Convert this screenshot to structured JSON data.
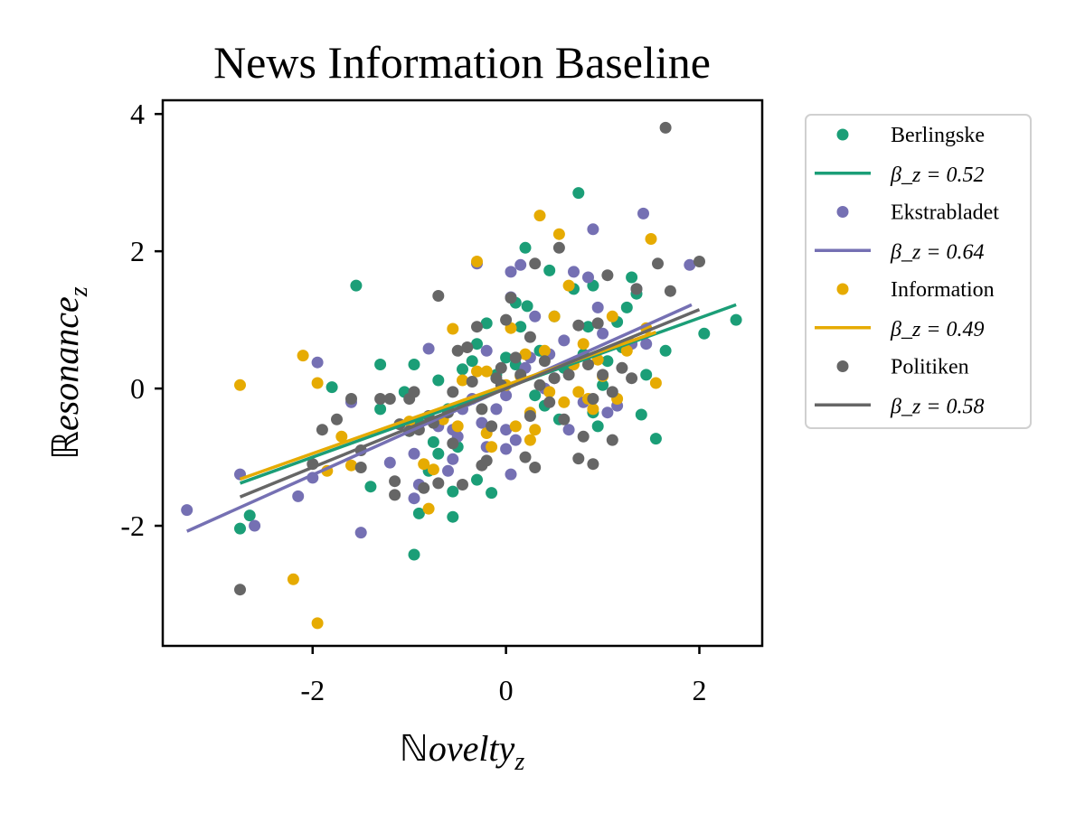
{
  "chart_data": {
    "type": "scatter",
    "title": "News Information Baseline",
    "xlabel_prefix": "ℕ",
    "xlabel_main": "ovelty",
    "xlabel_sub": "z",
    "ylabel_prefix": "ℝ",
    "ylabel_main": "esonance",
    "ylabel_sub": "z",
    "xlim": [
      -3.55,
      2.65
    ],
    "ylim": [
      -3.75,
      4.2
    ],
    "xticks": [
      -2,
      0,
      2
    ],
    "xtick_labels": [
      "-2",
      "0",
      "2"
    ],
    "yticks": [
      -2,
      0,
      2,
      4
    ],
    "ytick_labels": [
      "-2",
      "0",
      "2",
      "4"
    ],
    "grid": false,
    "legend_position": "outside-right",
    "series": [
      {
        "name": "Berlingske",
        "color": "#1b9e77",
        "fit_label": "β_z = 0.52",
        "fit": [
          [
            -2.75,
            -1.38
          ],
          [
            2.38,
            1.22
          ]
        ],
        "points": [
          [
            -2.65,
            -1.85
          ],
          [
            -2.75,
            -2.04
          ],
          [
            -1.55,
            1.5
          ],
          [
            -1.8,
            0.02
          ],
          [
            -1.3,
            -0.3
          ],
          [
            -1.4,
            -1.43
          ],
          [
            -0.95,
            -2.42
          ],
          [
            -0.9,
            -1.82
          ],
          [
            -0.55,
            -1.87
          ],
          [
            -0.55,
            -1.5
          ],
          [
            -0.3,
            -1.33
          ],
          [
            -0.15,
            -1.52
          ],
          [
            -0.5,
            -0.85
          ],
          [
            -0.75,
            -0.78
          ],
          [
            -0.7,
            -0.95
          ],
          [
            -0.8,
            -1.2
          ],
          [
            -1.0,
            -0.62
          ],
          [
            -0.9,
            -0.5
          ],
          [
            -0.7,
            0.12
          ],
          [
            -0.45,
            0.28
          ],
          [
            -0.35,
            0.4
          ],
          [
            -0.3,
            0.65
          ],
          [
            -0.2,
            0.95
          ],
          [
            0.0,
            0.45
          ],
          [
            0.1,
            0.35
          ],
          [
            0.1,
            1.25
          ],
          [
            0.15,
            0.9
          ],
          [
            0.2,
            2.05
          ],
          [
            0.22,
            1.2
          ],
          [
            0.35,
            0.55
          ],
          [
            0.45,
            1.72
          ],
          [
            0.5,
            1.05
          ],
          [
            0.6,
            0.3
          ],
          [
            0.7,
            1.45
          ],
          [
            0.75,
            2.85
          ],
          [
            0.8,
            0.5
          ],
          [
            0.85,
            0.9
          ],
          [
            0.9,
            1.5
          ],
          [
            0.9,
            -0.35
          ],
          [
            0.95,
            -0.55
          ],
          [
            1.0,
            0.05
          ],
          [
            1.05,
            0.4
          ],
          [
            1.15,
            0.97
          ],
          [
            1.2,
            0.6
          ],
          [
            1.25,
            1.18
          ],
          [
            1.3,
            1.62
          ],
          [
            1.35,
            1.38
          ],
          [
            1.4,
            -0.38
          ],
          [
            1.45,
            0.2
          ],
          [
            1.55,
            -0.73
          ],
          [
            1.65,
            0.55
          ],
          [
            2.05,
            0.8
          ],
          [
            2.38,
            1.0
          ],
          [
            -1.05,
            -0.05
          ],
          [
            -0.6,
            -0.3
          ],
          [
            -0.95,
            0.35
          ],
          [
            -1.3,
            0.35
          ],
          [
            -0.1,
            0.2
          ],
          [
            0.3,
            -0.1
          ],
          [
            0.55,
            -0.45
          ],
          [
            0.4,
            -0.25
          ]
        ]
      },
      {
        "name": "Ekstrabladet",
        "color": "#7570b3",
        "fit_label": "β_z = 0.64",
        "fit": [
          [
            -3.3,
            -2.08
          ],
          [
            1.92,
            1.22
          ]
        ],
        "points": [
          [
            -3.3,
            -1.77
          ],
          [
            -2.75,
            -1.25
          ],
          [
            -2.6,
            -2.0
          ],
          [
            -2.15,
            -1.57
          ],
          [
            -2.0,
            -1.3
          ],
          [
            -1.95,
            0.38
          ],
          [
            -1.6,
            -0.2
          ],
          [
            -1.5,
            -2.1
          ],
          [
            -1.2,
            -1.08
          ],
          [
            -0.95,
            -1.6
          ],
          [
            -0.9,
            -1.4
          ],
          [
            -0.95,
            -0.95
          ],
          [
            -0.8,
            0.58
          ],
          [
            -0.6,
            -1.2
          ],
          [
            -0.55,
            -1.03
          ],
          [
            -0.5,
            -0.7
          ],
          [
            -0.45,
            -0.3
          ],
          [
            -0.3,
            1.82
          ],
          [
            -0.25,
            -0.5
          ],
          [
            -0.2,
            0.55
          ],
          [
            -0.2,
            -0.85
          ],
          [
            -0.1,
            -0.3
          ],
          [
            0.0,
            -0.1
          ],
          [
            0.0,
            -0.6
          ],
          [
            0.0,
            -0.88
          ],
          [
            0.05,
            1.33
          ],
          [
            0.05,
            1.7
          ],
          [
            0.1,
            -0.75
          ],
          [
            0.05,
            -1.25
          ],
          [
            0.15,
            1.8
          ],
          [
            0.25,
            0.45
          ],
          [
            0.3,
            1.05
          ],
          [
            0.45,
            0.5
          ],
          [
            0.5,
            0.15
          ],
          [
            0.6,
            0.7
          ],
          [
            0.65,
            -0.6
          ],
          [
            0.7,
            1.7
          ],
          [
            0.8,
            -0.2
          ],
          [
            0.85,
            1.62
          ],
          [
            0.9,
            2.32
          ],
          [
            0.95,
            1.18
          ],
          [
            1.0,
            0.8
          ],
          [
            1.05,
            -0.35
          ],
          [
            1.15,
            -0.25
          ],
          [
            1.3,
            0.65
          ],
          [
            1.35,
            1.45
          ],
          [
            1.42,
            2.55
          ],
          [
            1.45,
            0.65
          ],
          [
            1.9,
            1.8
          ],
          [
            -0.55,
            -0.6
          ],
          [
            -0.7,
            -0.55
          ],
          [
            -0.35,
            -0.15
          ],
          [
            0.4,
            0.0
          ],
          [
            0.2,
            0.3
          ]
        ]
      },
      {
        "name": "Information",
        "color": "#e6ab02",
        "fit_label": "β_z = 0.49",
        "fit": [
          [
            -2.75,
            -1.32
          ],
          [
            1.55,
            0.82
          ]
        ],
        "points": [
          [
            -2.75,
            0.05
          ],
          [
            -2.1,
            0.48
          ],
          [
            -1.95,
            0.08
          ],
          [
            -1.85,
            -1.2
          ],
          [
            -1.7,
            -0.7
          ],
          [
            -1.6,
            -1.12
          ],
          [
            -2.2,
            -2.78
          ],
          [
            -1.95,
            -3.42
          ],
          [
            -1.0,
            -0.48
          ],
          [
            -0.85,
            -1.1
          ],
          [
            -0.75,
            -1.18
          ],
          [
            -0.8,
            -1.75
          ],
          [
            -0.55,
            0.87
          ],
          [
            -0.5,
            -0.55
          ],
          [
            -0.45,
            0.12
          ],
          [
            -0.3,
            0.25
          ],
          [
            -0.3,
            1.85
          ],
          [
            -0.2,
            -0.65
          ],
          [
            -0.15,
            -0.85
          ],
          [
            0.05,
            0.88
          ],
          [
            0.1,
            -0.55
          ],
          [
            0.15,
            0.18
          ],
          [
            0.2,
            0.5
          ],
          [
            0.25,
            -0.35
          ],
          [
            0.25,
            -0.75
          ],
          [
            0.3,
            -0.6
          ],
          [
            0.35,
            2.52
          ],
          [
            0.4,
            0.55
          ],
          [
            0.45,
            -0.05
          ],
          [
            0.5,
            1.05
          ],
          [
            0.55,
            2.25
          ],
          [
            0.6,
            -0.2
          ],
          [
            0.65,
            1.5
          ],
          [
            0.7,
            0.35
          ],
          [
            0.75,
            -0.05
          ],
          [
            0.8,
            0.65
          ],
          [
            0.85,
            -0.15
          ],
          [
            0.9,
            -0.3
          ],
          [
            0.95,
            0.42
          ],
          [
            1.0,
            0.18
          ],
          [
            1.1,
            1.05
          ],
          [
            1.15,
            -0.15
          ],
          [
            1.25,
            0.55
          ],
          [
            1.45,
            0.88
          ],
          [
            1.5,
            2.18
          ],
          [
            1.55,
            0.08
          ],
          [
            -0.2,
            0.25
          ],
          [
            0.0,
            0.05
          ],
          [
            -0.65,
            -0.45
          ]
        ]
      },
      {
        "name": "Politiken",
        "color": "#666666",
        "fit_label": "β_z = 0.58",
        "fit": [
          [
            -2.75,
            -1.58
          ],
          [
            2.0,
            1.15
          ]
        ],
        "points": [
          [
            -2.75,
            -2.93
          ],
          [
            -2.0,
            -1.1
          ],
          [
            -1.9,
            -0.6
          ],
          [
            -1.75,
            -0.45
          ],
          [
            -1.6,
            -0.15
          ],
          [
            -1.5,
            -0.9
          ],
          [
            -1.5,
            -1.15
          ],
          [
            -1.3,
            -0.15
          ],
          [
            -1.2,
            -0.15
          ],
          [
            -1.15,
            -1.35
          ],
          [
            -1.15,
            -1.55
          ],
          [
            -1.1,
            -0.52
          ],
          [
            -1.0,
            -0.62
          ],
          [
            -1.0,
            -0.15
          ],
          [
            -0.95,
            -0.05
          ],
          [
            -0.9,
            -0.6
          ],
          [
            -0.85,
            -1.45
          ],
          [
            -0.75,
            -0.5
          ],
          [
            -0.7,
            1.35
          ],
          [
            -0.7,
            -1.38
          ],
          [
            -0.6,
            -0.35
          ],
          [
            -0.55,
            -0.8
          ],
          [
            -0.5,
            0.55
          ],
          [
            -0.45,
            -1.4
          ],
          [
            -0.4,
            0.6
          ],
          [
            -0.35,
            0.1
          ],
          [
            -0.3,
            0.9
          ],
          [
            -0.25,
            -1.12
          ],
          [
            -0.2,
            -1.05
          ],
          [
            -0.15,
            -0.55
          ],
          [
            -0.1,
            0.15
          ],
          [
            -0.05,
            0.3
          ],
          [
            0.0,
            1.0
          ],
          [
            0.05,
            1.32
          ],
          [
            0.1,
            0.45
          ],
          [
            0.15,
            0.2
          ],
          [
            0.2,
            -1.0
          ],
          [
            0.25,
            0.75
          ],
          [
            0.3,
            1.82
          ],
          [
            0.3,
            -1.15
          ],
          [
            0.4,
            0.4
          ],
          [
            0.45,
            -0.2
          ],
          [
            0.55,
            2.05
          ],
          [
            0.6,
            -0.45
          ],
          [
            0.65,
            0.2
          ],
          [
            0.75,
            0.92
          ],
          [
            0.75,
            -1.02
          ],
          [
            0.8,
            -0.7
          ],
          [
            0.85,
            0.35
          ],
          [
            0.9,
            -0.15
          ],
          [
            0.9,
            -1.1
          ],
          [
            0.95,
            0.95
          ],
          [
            1.0,
            0.2
          ],
          [
            1.05,
            1.65
          ],
          [
            1.1,
            -0.05
          ],
          [
            1.1,
            -0.75
          ],
          [
            1.2,
            0.3
          ],
          [
            1.3,
            0.15
          ],
          [
            1.35,
            1.45
          ],
          [
            1.57,
            1.82
          ],
          [
            1.65,
            3.8
          ],
          [
            1.7,
            1.42
          ],
          [
            2.0,
            1.85
          ],
          [
            0.35,
            0.05
          ],
          [
            -0.05,
            0.05
          ],
          [
            0.25,
            -0.4
          ],
          [
            0.5,
            0.15
          ],
          [
            -0.25,
            -0.3
          ],
          [
            -0.8,
            -0.4
          ],
          [
            -0.55,
            -0.05
          ]
        ]
      }
    ]
  }
}
